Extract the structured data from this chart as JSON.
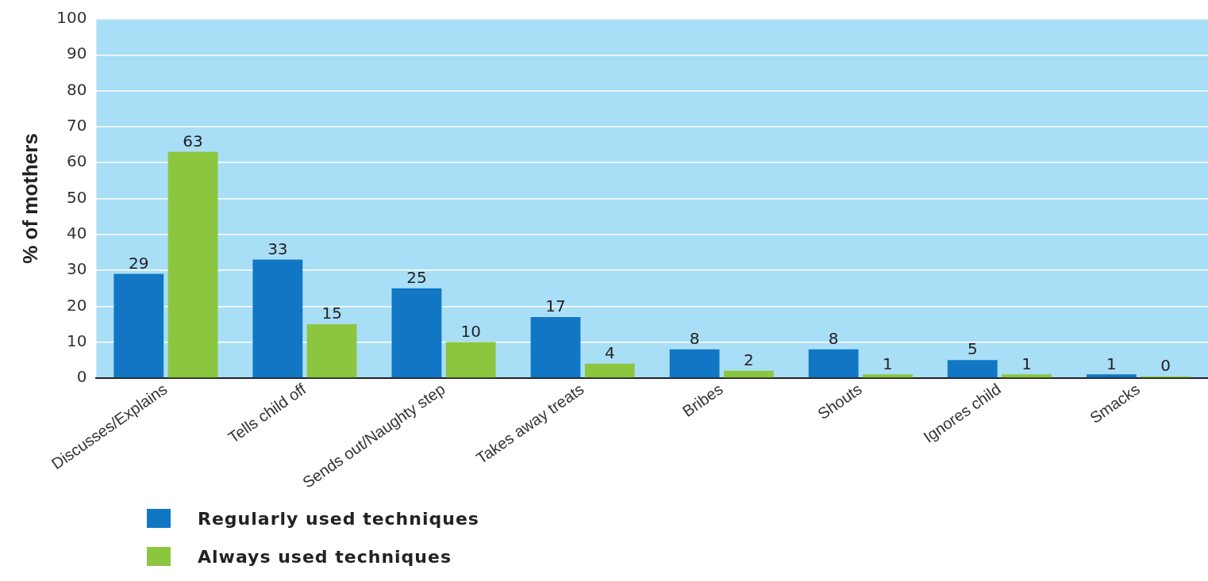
{
  "chart_data": {
    "type": "bar",
    "ylabel": "% of mothers",
    "categories": [
      "Discusses/Explains",
      "Tells child off",
      "Sends out/Naughty step",
      "Takes away treats",
      "Bribes",
      "Shouts",
      "Ignores child",
      "Smacks"
    ],
    "series": [
      {
        "name": "Regularly used techniques",
        "color": "#1177c4",
        "values": [
          29,
          33,
          25,
          17,
          8,
          8,
          5,
          1
        ]
      },
      {
        "name": "Always used techniques",
        "color": "#8cc63f",
        "values": [
          63,
          15,
          10,
          4,
          2,
          1,
          1,
          0
        ]
      }
    ],
    "ylim": [
      0,
      100
    ],
    "yticks": [
      0,
      10,
      20,
      30,
      40,
      50,
      60,
      70,
      80,
      90,
      100
    ],
    "grid": "y",
    "legend": "bottom left",
    "data_labels": true
  }
}
